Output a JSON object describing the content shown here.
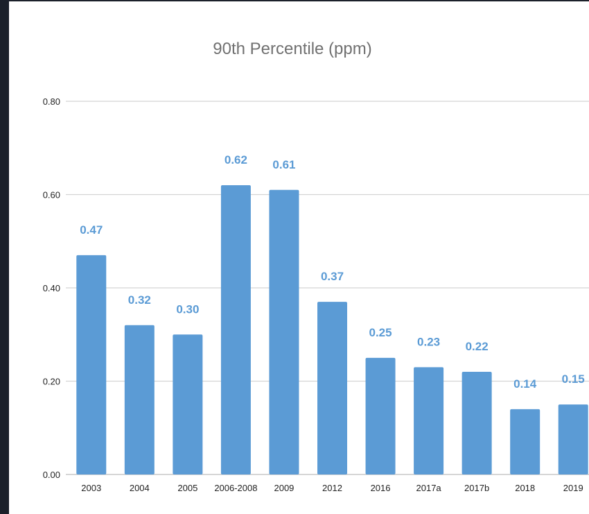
{
  "chart_data": {
    "type": "bar",
    "title": "90th Percentile (ppm)",
    "xlabel": "",
    "ylabel": "",
    "categories": [
      "2003",
      "2004",
      "2005",
      "2006-2008",
      "2009",
      "2012",
      "2016",
      "2017a",
      "2017b",
      "2018",
      "2019"
    ],
    "values": [
      0.47,
      0.32,
      0.3,
      0.62,
      0.61,
      0.37,
      0.25,
      0.23,
      0.22,
      0.14,
      0.15
    ],
    "value_labels": [
      "0.47",
      "0.32",
      "0.30",
      "0.62",
      "0.61",
      "0.37",
      "0.25",
      "0.23",
      "0.22",
      "0.14",
      "0.15"
    ],
    "ylim": [
      0,
      0.8
    ],
    "yticks": [
      0,
      0.2,
      0.4,
      0.6,
      0.8
    ],
    "ytick_labels": [
      "0.00",
      "0.20",
      "0.40",
      "0.60",
      "0.80"
    ],
    "grid": true,
    "legend": "none",
    "bar_color": "#5b9bd5",
    "label_color": "#5b9bd5"
  }
}
